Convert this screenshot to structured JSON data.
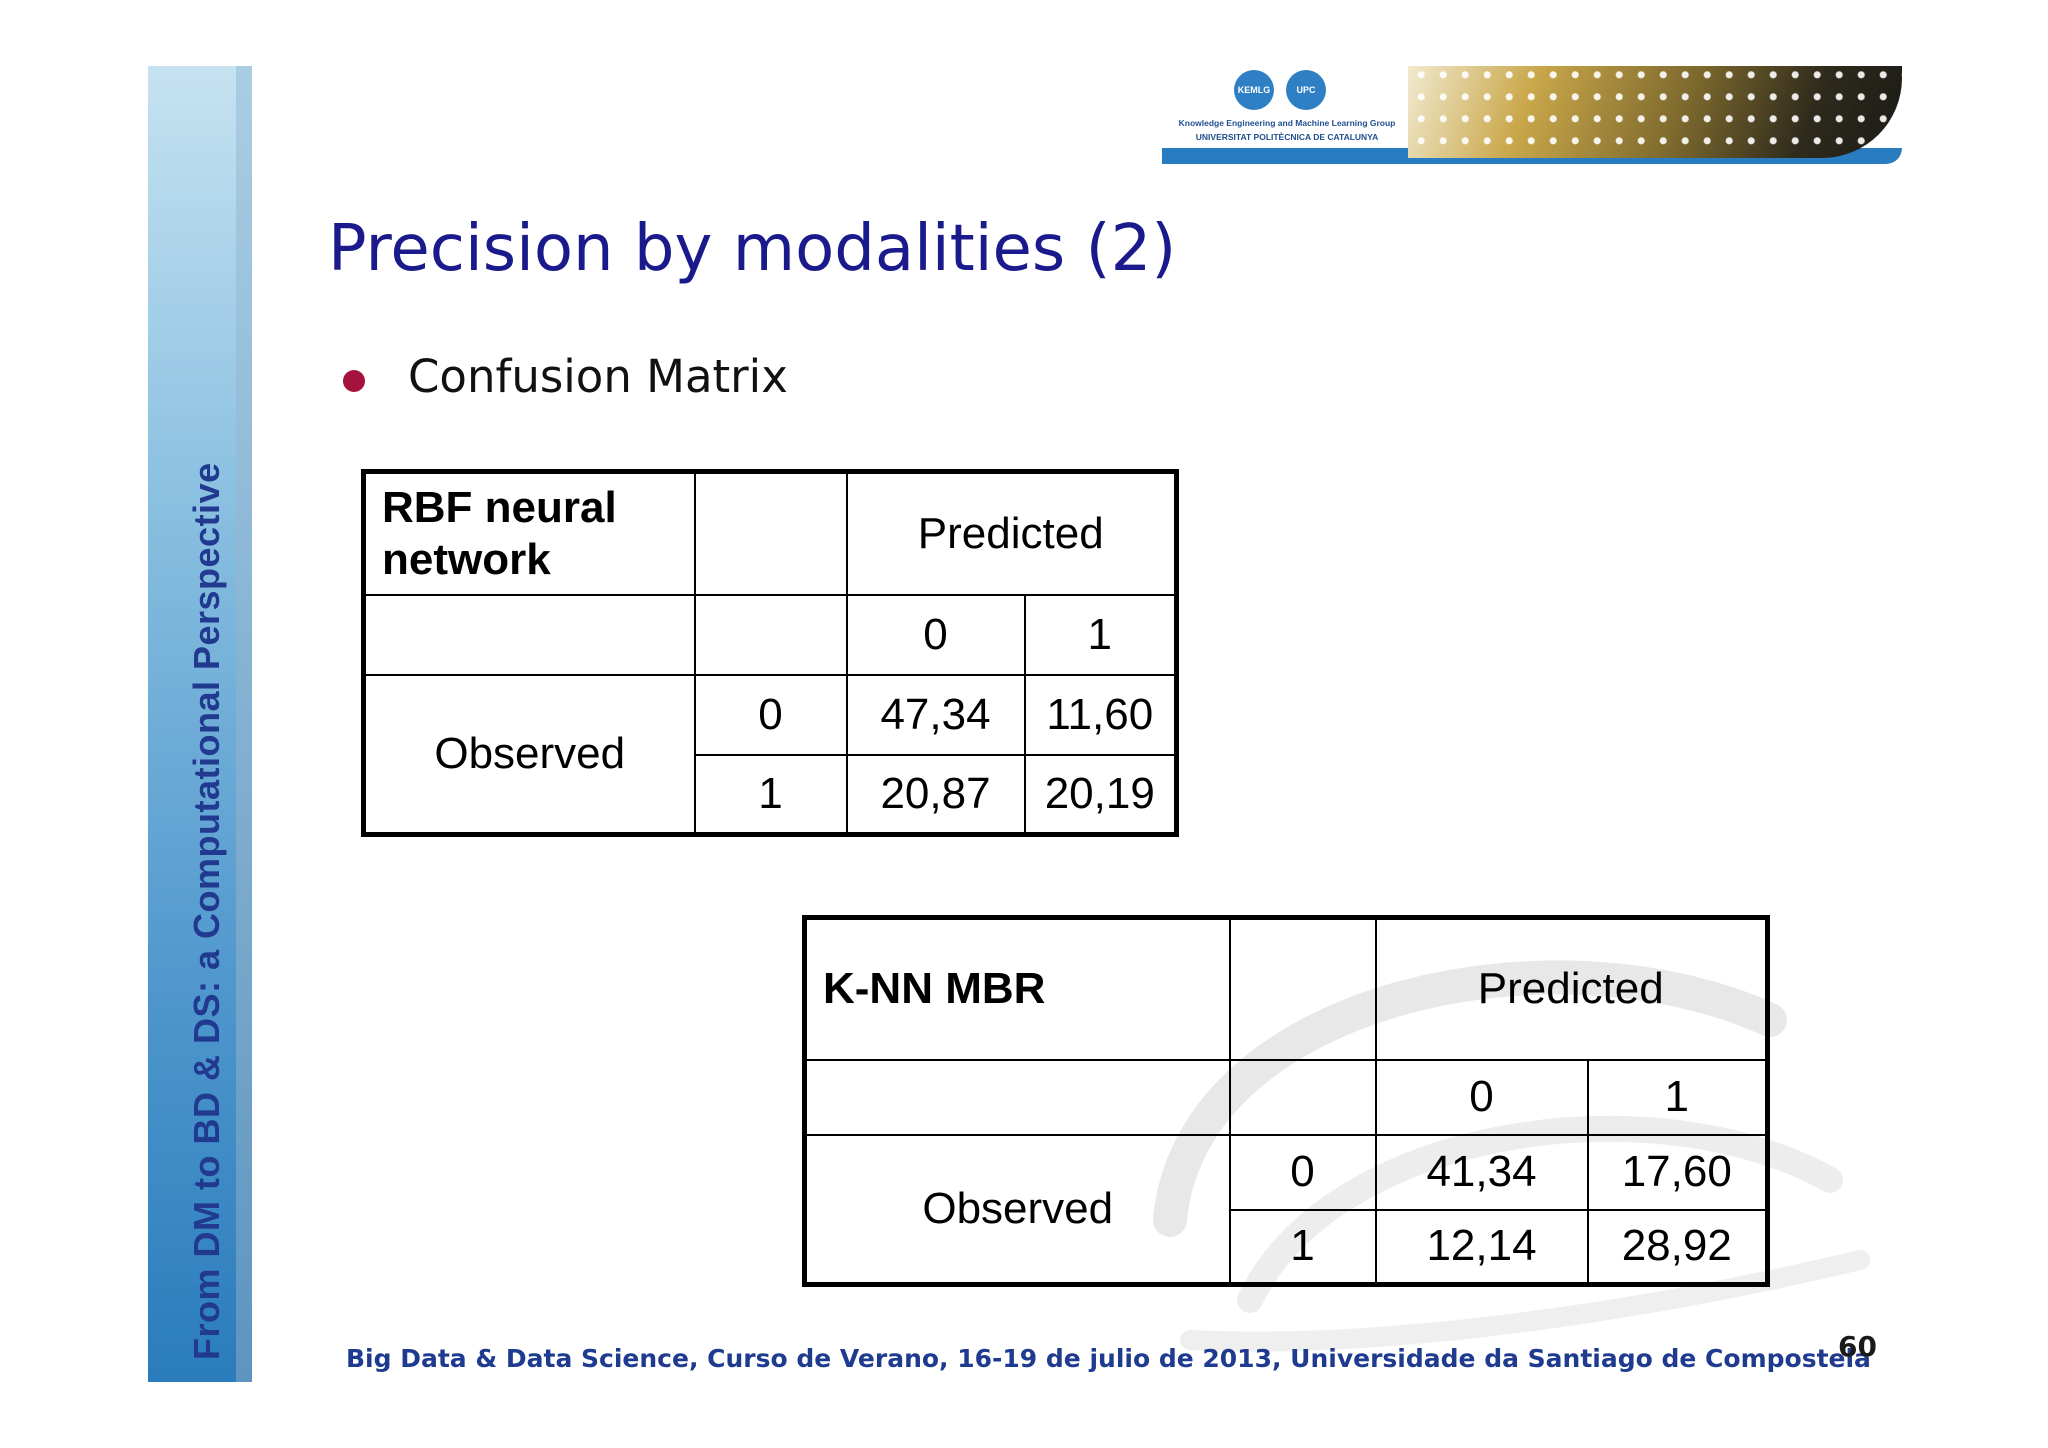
{
  "sidebar": {
    "text": "From DM to BD & DS: a Computational Perspective"
  },
  "header": {
    "logo_badge_1": "KEMLG",
    "logo_badge_2": "UPC",
    "logo_line_1": "Knowledge Engineering and Machine Learning Group",
    "logo_line_2": "UNIVERSITAT POLITÈCNICA DE CATALUNYA"
  },
  "slide": {
    "title": "Precision by modalities (2)",
    "bullet": "Confusion Matrix"
  },
  "tables": [
    {
      "model": "RBF neural network",
      "predicted_label": "Predicted",
      "observed_label": "Observed",
      "classes": [
        "0",
        "1"
      ],
      "rows": [
        {
          "class": "0",
          "values": [
            "47,34",
            "11,60"
          ]
        },
        {
          "class": "1",
          "values": [
            "20,87",
            "20,19"
          ]
        }
      ]
    },
    {
      "model": "K-NN MBR",
      "predicted_label": "Predicted",
      "observed_label": "Observed",
      "classes": [
        "0",
        "1"
      ],
      "rows": [
        {
          "class": "0",
          "values": [
            "41,34",
            "17,60"
          ]
        },
        {
          "class": "1",
          "values": [
            "12,14",
            "28,92"
          ]
        }
      ]
    }
  ],
  "footer": {
    "text": "Big Data & Data Science, Curso de Verano, 16-19 de julio de 2013, Universidade da Santiago de Compostela",
    "page_number": "60"
  },
  "colors": {
    "title": "#1a1a8c",
    "bullet": "#a5123e",
    "footer": "#1f3b8f",
    "sidebar_text": "#213a8f"
  }
}
